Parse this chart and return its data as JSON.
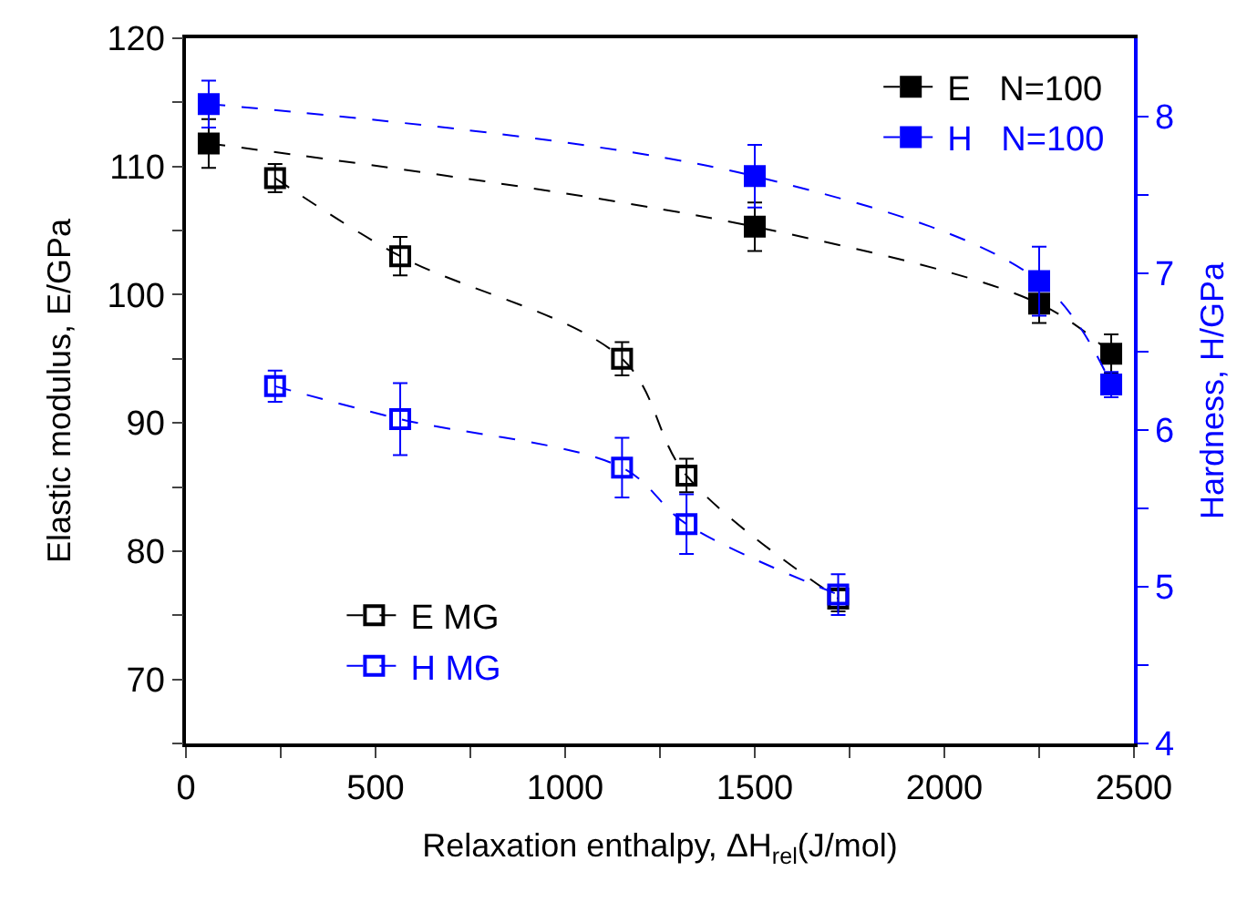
{
  "chart_data": {
    "type": "line",
    "legend": "top right",
    "xlabel": "Relaxation enthalpy, ΔH$_{rel}$(J/mol)",
    "ylabel": "Elastic modulus, E/GPa",
    "y2label": "Hardness, H/GPa",
    "xlim": [
      0,
      2500
    ],
    "xticks": [
      0,
      {
        "value": 250,
        "label": null
      },
      500,
      {
        "value": 750,
        "label": null
      },
      1000,
      {
        "value": 1250,
        "label": null
      },
      1500,
      {
        "value": 1750,
        "label": null
      },
      2000,
      {
        "value": 2250,
        "label": null
      },
      2500
    ],
    "ylim": [
      65,
      120
    ],
    "yticks": [
      {
        "value": 65,
        "label": null
      },
      70,
      {
        "value": 75,
        "label": null
      },
      80,
      {
        "value": 85,
        "label": null
      },
      90,
      {
        "value": 95,
        "label": null
      },
      100,
      {
        "value": 105,
        "label": null
      },
      110,
      {
        "value": 115,
        "label": null
      },
      120
    ],
    "y2lim": [
      4,
      8.5
    ],
    "y2ticks": [
      4,
      {
        "value": 4.5,
        "label": null
      },
      5,
      {
        "value": 5.5,
        "label": null
      },
      6,
      {
        "value": 6.5,
        "label": null
      },
      7,
      {
        "value": 7.5,
        "label": null
      },
      8
    ],
    "marker": "square",
    "line_style": "dashed",
    "series": [
      {
        "name": "E   N=100",
        "color": "#000000",
        "x": [
          60,
          1500,
          2250,
          2440
        ],
        "values": [
          111.8,
          105.3,
          99.3,
          95.4
        ],
        "errors": [
          1.9,
          1.9,
          1.5,
          1.5
        ]
      },
      {
        "name": "H   N=100",
        "color": "#0000ff",
        "axis": "y2",
        "x": [
          60,
          1500,
          2250,
          2440
        ],
        "values": [
          8.08,
          7.62,
          6.95,
          6.29
        ],
        "errors": [
          0.15,
          0.2,
          0.22,
          0.08
        ]
      },
      {
        "name": "E MG",
        "color": "#000000",
        "x": [
          235,
          565,
          1150,
          1320,
          1720
        ],
        "values": [
          109.1,
          103.0,
          95.0,
          85.9,
          76.3
        ],
        "errors": [
          1.1,
          1.5,
          1.3,
          1.3,
          1.0
        ]
      },
      {
        "name": "H MG",
        "color": "#0000ff",
        "axis": "y2",
        "x": [
          235,
          565,
          1150,
          1320,
          1720
        ],
        "values": [
          6.28,
          6.07,
          5.76,
          5.4,
          4.95
        ],
        "errors": [
          0.1,
          0.23,
          0.19,
          0.19,
          0.13
        ]
      }
    ]
  }
}
